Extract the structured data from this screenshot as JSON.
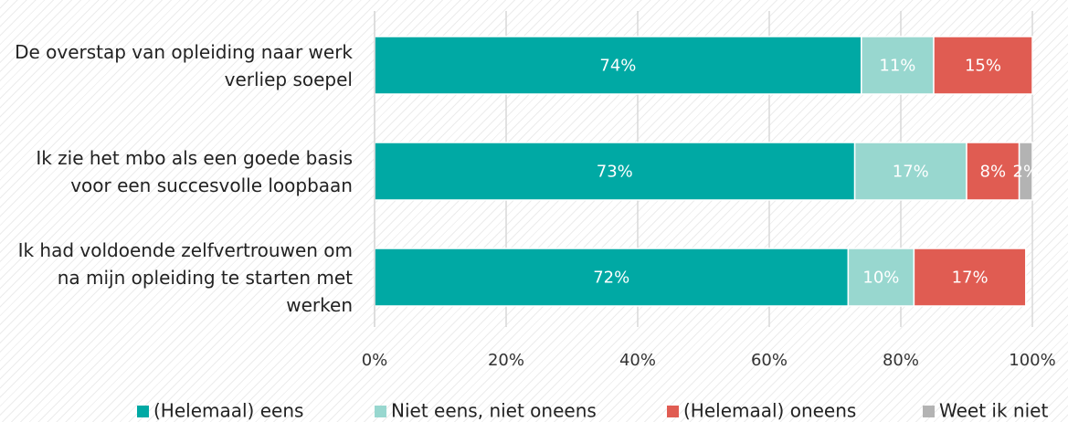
{
  "chart_data": {
    "type": "stacked-bar-horizontal",
    "categories": [
      "De overstap van opleiding naar werk verliep soepel",
      "Ik zie het mbo als een goede basis voor een succesvolle loopbaan",
      "Ik had voldoende zelfvertrouwen om na mijn opleiding te starten met werken"
    ],
    "series": [
      {
        "name": "(Helemaal) eens",
        "color": "#00a9a4",
        "values": [
          74,
          73,
          72
        ],
        "value_labels": [
          "74%",
          "73%",
          "72%"
        ]
      },
      {
        "name": "Niet eens, niet oneens",
        "color": "#98d7cf",
        "values": [
          11,
          17,
          10
        ],
        "value_labels": [
          "11%",
          "17%",
          "10%"
        ]
      },
      {
        "name": "(Helemaal) oneens",
        "color": "#e05c52",
        "values": [
          15,
          8,
          17
        ],
        "value_labels": [
          "15%",
          "8%",
          "17%"
        ]
      },
      {
        "name": "Weet ik niet",
        "color": "#b3b3b3",
        "values": [
          null,
          2,
          null
        ],
        "value_labels": [
          null,
          "2%",
          null
        ]
      }
    ],
    "xlim": [
      0,
      100
    ],
    "xticks": [
      {
        "value": 0,
        "label": "0%"
      },
      {
        "value": 20,
        "label": "20%"
      },
      {
        "value": 40,
        "label": "40%"
      },
      {
        "value": 60,
        "label": "60%"
      },
      {
        "value": 80,
        "label": "80%"
      },
      {
        "value": 100,
        "label": "100%"
      }
    ],
    "grid": true,
    "legend": "bottom"
  }
}
